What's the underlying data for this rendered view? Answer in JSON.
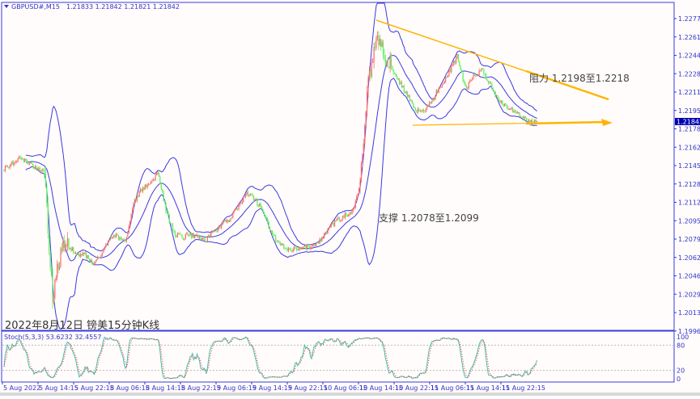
{
  "header": {
    "symbol": "GBPUSD#,M15",
    "ohlc": "1.21833 1.21842 1.21821 1.21842",
    "arrow_icon": "triangle-down-icon"
  },
  "annotations": {
    "resistance": "阻力 1.2198至1.2218",
    "support": "支撑 1.2078至1.2099",
    "caption": "2022年8月12日 镑美15分钟K线"
  },
  "colors": {
    "bull": "#ff6b6b",
    "bear": "#5cf05c",
    "bands": "#3a3ae0",
    "trendline": "#ffb400",
    "axis": "#3535c8",
    "stoch_main": "#40c0b0",
    "stoch_signal": "#ff3030",
    "price_tag_bg": "#0000b0"
  },
  "chart_data": [
    {
      "type": "candlestick",
      "title": "",
      "indicators": [
        "Bollinger Bands"
      ],
      "current_price": "1.21842",
      "y_ticks": [
        "1.22775",
        "1.22610",
        "1.22445",
        "1.22280",
        "1.22115",
        "1.21950",
        "1.21785",
        "1.21620",
        "1.21455",
        "1.21285",
        "1.21120",
        "1.20955",
        "1.20790",
        "1.20625",
        "1.20460",
        "1.20295",
        "1.20130",
        "1.19965"
      ],
      "ylim": [
        1.19965,
        1.22775
      ],
      "x_ticks": [
        "5 Aug 2022",
        "5 Aug 14:15",
        "5 Aug 22:15",
        "8 Aug 06:15",
        "8 Aug 14:15",
        "8 Aug 22:15",
        "9 Aug 06:15",
        "9 Aug 14:15",
        "9 Aug 22:15",
        "10 Aug 06:15",
        "10 Aug 14:15",
        "10 Aug 22:15",
        "11 Aug 06:15",
        "11 Aug 14:15",
        "11 Aug 22:15"
      ],
      "approx_closes": [
        1.21419,
        1.2147,
        1.21528,
        1.2148,
        1.2142,
        1.21419,
        1.2025,
        1.2069,
        1.2073,
        1.2066,
        1.2065,
        1.2058,
        1.2066,
        1.208,
        1.2082,
        1.20767,
        1.2113,
        1.2124,
        1.213,
        1.21383,
        1.2105,
        1.2084,
        1.2081,
        1.2083,
        1.2082,
        1.2079,
        1.2086,
        1.2093,
        1.2098,
        1.211,
        1.212,
        1.2115,
        1.2105,
        1.2085,
        1.2075,
        1.207,
        1.2071,
        1.2072,
        1.20731,
        1.2078,
        1.2088,
        1.2095,
        1.21,
        1.2103,
        1.21274,
        1.22217,
        1.22616,
        1.2247,
        1.223,
        1.2218,
        1.2207,
        1.2194,
        1.2195,
        1.2205,
        1.2218,
        1.223,
        1.22434,
        1.22144,
        1.22253,
        1.2231,
        1.222,
        1.2204,
        1.2198,
        1.21945,
        1.2189,
        1.2185,
        1.21842
      ],
      "trendlines": [
        {
          "name": "resistance",
          "from": [
            1.2266,
            "10 Aug 14:15"
          ],
          "to": [
            1.21842,
            "12 Aug"
          ]
        },
        {
          "name": "support",
          "from": [
            1.218,
            "10 Aug 22:15"
          ],
          "to": [
            1.21842,
            "12 Aug"
          ]
        }
      ]
    },
    {
      "type": "line",
      "label": "Stoch(5,3,3) 53.6232 32.4557",
      "y_ticks": [
        "100",
        "80",
        "20",
        "0"
      ],
      "ylim": [
        0,
        100
      ],
      "levels": [
        80,
        20
      ]
    }
  ]
}
